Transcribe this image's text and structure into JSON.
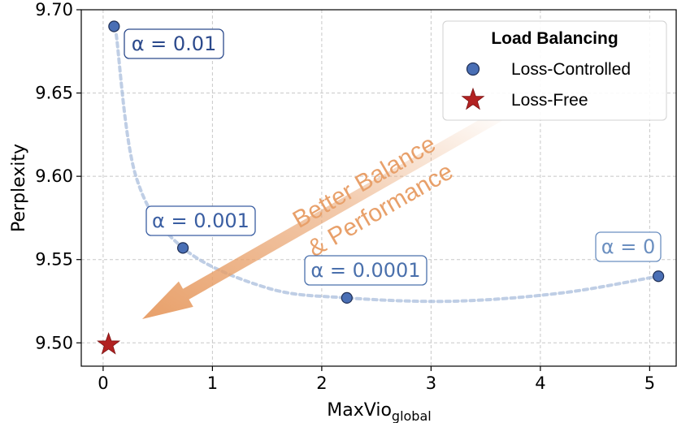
{
  "chart_data": {
    "type": "scatter",
    "xlabel": "MaxVio",
    "xlabel_sub": "global",
    "ylabel": "Perplexity",
    "xlim": [
      -0.2,
      5.25
    ],
    "ylim": [
      9.486,
      9.7
    ],
    "x_ticks": [
      0,
      1,
      2,
      3,
      4,
      5
    ],
    "x_tick_labels": [
      "0",
      "1",
      "2",
      "3",
      "4",
      "5"
    ],
    "y_ticks": [
      9.5,
      9.55,
      9.6,
      9.65,
      9.7
    ],
    "y_tick_labels": [
      "9.50",
      "9.55",
      "9.60",
      "9.65",
      "9.70"
    ],
    "grid": true,
    "legend": {
      "title": "Load Balancing",
      "placement": "top-right",
      "entries": [
        "Loss-Controlled",
        "Loss-Free"
      ]
    },
    "series": [
      {
        "name": "Loss-Controlled",
        "marker": "circle",
        "color": "#4a6fb5",
        "points": [
          {
            "x": 0.1,
            "y": 9.69,
            "label": "α = 0.01",
            "label_color": "#2c4a8c"
          },
          {
            "x": 0.73,
            "y": 9.557,
            "label": "α = 0.001",
            "label_color": "#3a5ea2"
          },
          {
            "x": 2.23,
            "y": 9.527,
            "label": "α = 0.0001",
            "label_color": "#4a70ac"
          },
          {
            "x": 5.08,
            "y": 9.54,
            "label": "α = 0",
            "label_color": "#6b8fc0"
          }
        ]
      },
      {
        "name": "Loss-Free",
        "marker": "star",
        "color": "#b22222",
        "points": [
          {
            "x": 0.05,
            "y": 9.499
          }
        ]
      }
    ],
    "trend_curve_color": "#a9bddc",
    "annotation_arrow": {
      "lines": [
        "Better Balance",
        "& Performance"
      ],
      "color": "#e8a06a"
    }
  }
}
